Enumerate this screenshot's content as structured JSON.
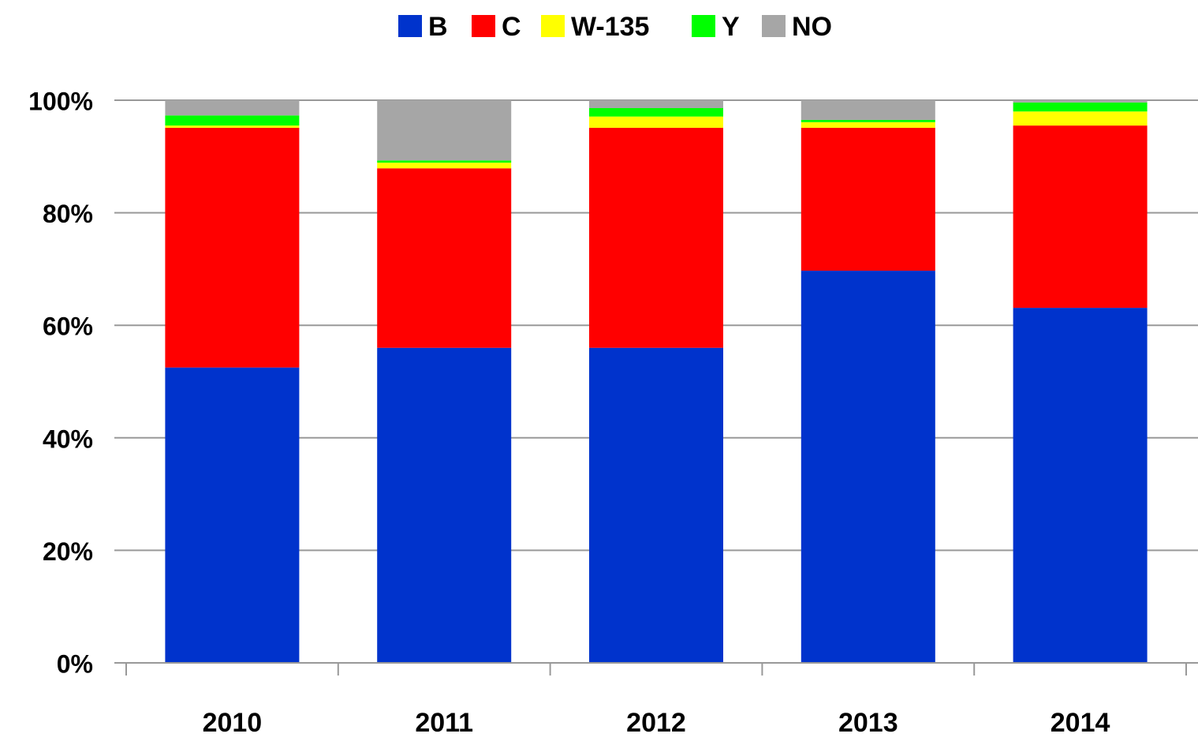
{
  "chart_data": {
    "type": "stacked_bar",
    "categories": [
      "2010",
      "2011",
      "2012",
      "2013",
      "2014"
    ],
    "series": [
      {
        "name": "B",
        "color": "#0033cc",
        "values": [
          52.5,
          56.0,
          56.0,
          69.7,
          63.1
        ]
      },
      {
        "name": "C",
        "color": "#ff0000",
        "values": [
          42.6,
          31.9,
          39.1,
          25.4,
          32.4
        ]
      },
      {
        "name": "W-135",
        "color": "#ffff00",
        "values": [
          0.4,
          1.0,
          2.0,
          1.0,
          2.5
        ]
      },
      {
        "name": "Y",
        "color": "#00ff00",
        "values": [
          1.8,
          0.4,
          1.5,
          0.4,
          1.6
        ]
      },
      {
        "name": "NO",
        "color": "#a6a6a6",
        "values": [
          2.7,
          10.7,
          1.4,
          3.5,
          0.4
        ]
      }
    ],
    "ylim": [
      0,
      100
    ],
    "yticks": [
      {
        "value": 0,
        "label": "0%"
      },
      {
        "value": 20,
        "label": "20%"
      },
      {
        "value": 40,
        "label": "40%"
      },
      {
        "value": 60,
        "label": "60%"
      },
      {
        "value": 80,
        "label": "80%"
      },
      {
        "value": 100,
        "label": "100%"
      }
    ],
    "grid": true,
    "legend": "top"
  }
}
